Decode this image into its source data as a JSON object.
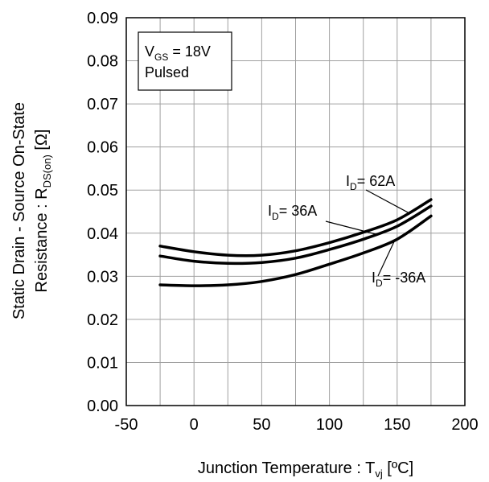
{
  "chart_data": {
    "type": "line",
    "xlabel": {
      "main": "Junction Temperature : T",
      "sub": "vj",
      "tail": " [ºC]"
    },
    "ylabel": {
      "line1": "Static Drain - Source On-State",
      "line2_main": "Resistance : R",
      "line2_sub": "DS(on)",
      "line2_tail": " [Ω]"
    },
    "xlim": [
      -50,
      200
    ],
    "ylim": [
      0,
      0.09
    ],
    "xticks": [
      "-50",
      "0",
      "50",
      "100",
      "150",
      "200"
    ],
    "yticks": [
      "0.00",
      "0.01",
      "0.02",
      "0.03",
      "0.04",
      "0.05",
      "0.06",
      "0.07",
      "0.08",
      "0.09"
    ],
    "grid": true,
    "conditions": {
      "line1_main": "V",
      "line1_sub": "GS",
      "line1_tail": " = 18V",
      "line2": "Pulsed"
    },
    "series": [
      {
        "name": "62A",
        "label_main": "I",
        "label_sub": "D",
        "label_tail": "= 62A",
        "x": [
          -25,
          0,
          25,
          50,
          75,
          100,
          125,
          150,
          175
        ],
        "values": [
          0.037,
          0.0357,
          0.0349,
          0.0349,
          0.0359,
          0.0378,
          0.0402,
          0.0431,
          0.0478
        ]
      },
      {
        "name": "36A",
        "label_main": "I",
        "label_sub": "D",
        "label_tail": "= 36A",
        "x": [
          -25,
          0,
          25,
          50,
          75,
          100,
          125,
          150,
          175
        ],
        "values": [
          0.0347,
          0.0335,
          0.033,
          0.0332,
          0.0342,
          0.0362,
          0.0386,
          0.0416,
          0.0463
        ]
      },
      {
        "name": "-36A",
        "label_main": "I",
        "label_sub": "D",
        "label_tail": "= -36A",
        "x": [
          -25,
          0,
          25,
          50,
          75,
          100,
          125,
          150,
          175
        ],
        "values": [
          0.028,
          0.0278,
          0.028,
          0.0288,
          0.0304,
          0.0328,
          0.0354,
          0.0386,
          0.044
        ]
      }
    ],
    "colors": {
      "line": "#000000",
      "grid": "#a0a0a0",
      "background": "#ffffff"
    }
  }
}
